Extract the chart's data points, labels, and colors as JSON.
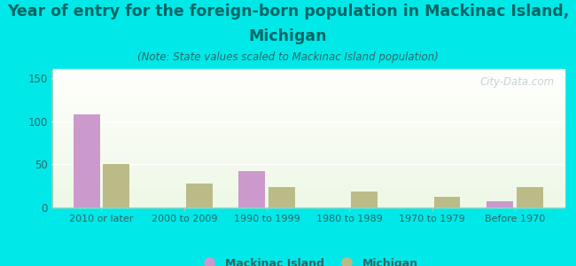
{
  "categories": [
    "2010 or later",
    "2000 to 2009",
    "1990 to 1999",
    "1980 to 1989",
    "1970 to 1979",
    "Before 1970"
  ],
  "mackinac_values": [
    108,
    0,
    42,
    0,
    0,
    7
  ],
  "michigan_values": [
    50,
    28,
    24,
    18,
    12,
    24
  ],
  "mackinac_color": "#cc99cc",
  "michigan_color": "#bbbb88",
  "title_line1": "Year of entry for the foreign-born population in Mackinac Island,",
  "title_line2": "Michigan",
  "subtitle": "(Note: State values scaled to Mackinac Island population)",
  "background_color": "#00e8e8",
  "title_color": "#006666",
  "subtitle_color": "#336666",
  "tick_color": "#336666",
  "ylim": [
    0,
    160
  ],
  "yticks": [
    0,
    50,
    100,
    150
  ],
  "legend_labels": [
    "Mackinac Island",
    "Michigan"
  ],
  "watermark": "City-Data.com",
  "title_fontsize": 12.5,
  "subtitle_fontsize": 8.5,
  "bar_width": 0.32,
  "bar_gap": 0.04
}
